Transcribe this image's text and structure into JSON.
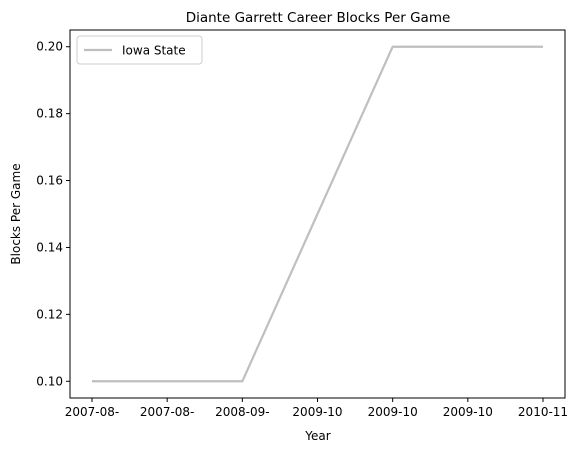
{
  "chart_data": {
    "type": "line",
    "title": "Diante Garrett Career Blocks Per Game",
    "xlabel": "Year",
    "ylabel": "Blocks Per Game",
    "x_tick_labels": [
      "2007-08-",
      "2007-08-",
      "2008-09-",
      "2009-10",
      "2009-10",
      "2009-10",
      "2010-11"
    ],
    "y_ticks": [
      "0.10",
      "0.12",
      "0.14",
      "0.16",
      "0.18",
      "0.20"
    ],
    "ylim": [
      0.095,
      0.205
    ],
    "grid": false,
    "legend_position": "top-left",
    "series": [
      {
        "name": "Iowa State",
        "color": "#bfbfbf",
        "values": [
          0.1,
          0.1,
          0.1,
          0.15,
          0.2,
          0.2,
          0.2
        ]
      }
    ]
  }
}
